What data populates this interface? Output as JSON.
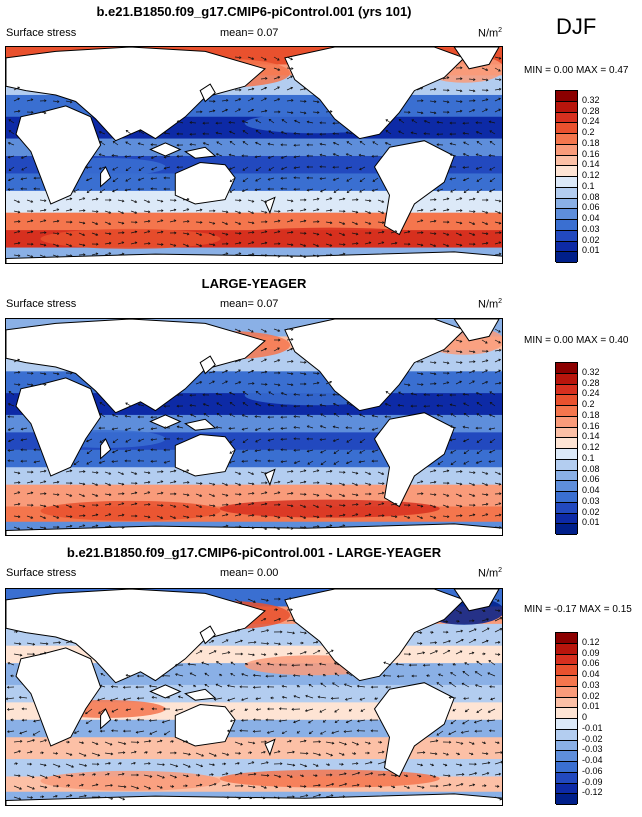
{
  "season": "DJF",
  "panels": [
    {
      "title": "b.e21.B1850.f09_g17.CMIP6-piControl.001 (yrs 101)",
      "variable": "Surface stress",
      "mean_label": "mean=",
      "mean": "0.07",
      "units_base": "N/m",
      "units_exp": "2",
      "minmax": "MIN =  0.00 MAX =  0.47",
      "levels": [
        "0.32",
        "0.28",
        "0.24",
        "0.2",
        "0.18",
        "0.16",
        "0.14",
        "0.12",
        "0.1",
        "0.08",
        "0.06",
        "0.04",
        "0.03",
        "0.02",
        "0.01"
      ],
      "colors": [
        "#8b0000",
        "#b8150c",
        "#d7301f",
        "#e9512e",
        "#f4764d",
        "#f99b7a",
        "#fcc0a6",
        "#fee4d4",
        "#dce9f8",
        "#b3cdf0",
        "#8ab0e6",
        "#5e8edb",
        "#3a6fd1",
        "#2249bf",
        "#0d2aa6",
        "#001f8a"
      ]
    },
    {
      "title": "LARGE-YEAGER",
      "variable": "Surface stress",
      "mean_label": "mean=",
      "mean": "0.07",
      "units_base": "N/m",
      "units_exp": "2",
      "minmax": "MIN =  0.00 MAX =  0.40",
      "levels": [
        "0.32",
        "0.28",
        "0.24",
        "0.2",
        "0.18",
        "0.16",
        "0.14",
        "0.12",
        "0.1",
        "0.08",
        "0.06",
        "0.04",
        "0.03",
        "0.02",
        "0.01"
      ],
      "colors": [
        "#8b0000",
        "#b8150c",
        "#d7301f",
        "#e9512e",
        "#f4764d",
        "#f99b7a",
        "#fcc0a6",
        "#fee4d4",
        "#dce9f8",
        "#b3cdf0",
        "#8ab0e6",
        "#5e8edb",
        "#3a6fd1",
        "#2249bf",
        "#0d2aa6",
        "#001f8a"
      ]
    },
    {
      "title": "b.e21.B1850.f09_g17.CMIP6-piControl.001 - LARGE-YEAGER",
      "variable": "Surface stress",
      "mean_label": "mean=",
      "mean": "0.00",
      "units_base": "N/m",
      "units_exp": "2",
      "minmax": "MIN = -0.17 MAX =  0.15",
      "levels": [
        "0.12",
        "0.09",
        "0.06",
        "0.04",
        "0.03",
        "0.02",
        "0.01",
        "0",
        "-0.01",
        "-0.02",
        "-0.03",
        "-0.04",
        "-0.06",
        "-0.09",
        "-0.12"
      ],
      "colors": [
        "#8b0000",
        "#b8150c",
        "#d7301f",
        "#e9512e",
        "#f4764d",
        "#f99b7a",
        "#fcc0a6",
        "#fee4d4",
        "#dce9f8",
        "#b3cdf0",
        "#8ab0e6",
        "#5e8edb",
        "#3a6fd1",
        "#2249bf",
        "#0d2aa6",
        "#001f8a"
      ]
    }
  ],
  "map_colors": {
    "land": "#ffffff",
    "coast": "#000000",
    "vector": "#111111"
  }
}
